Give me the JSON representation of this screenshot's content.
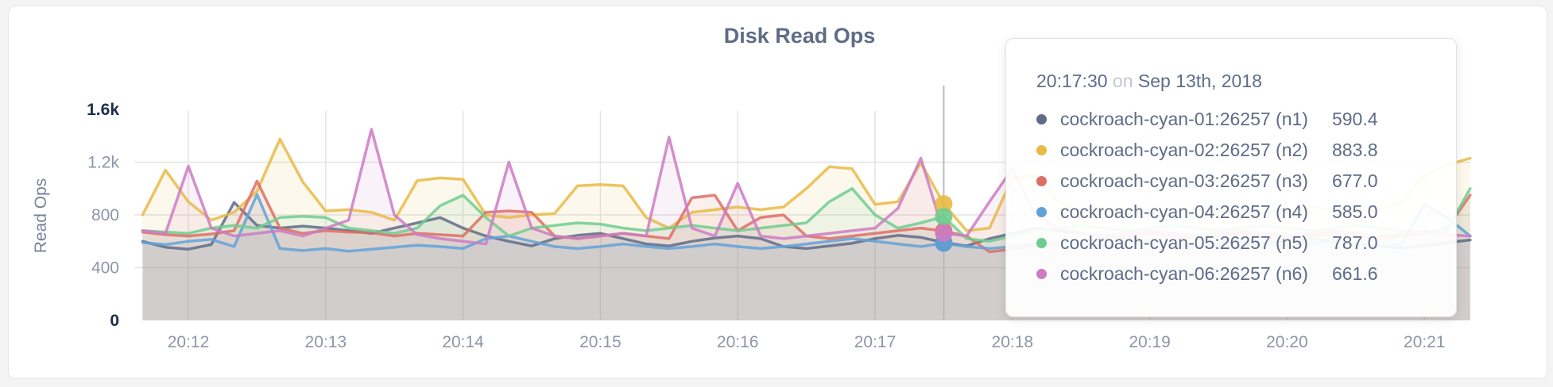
{
  "page": {
    "background": "#F4F4F5",
    "card_background": "#FFFFFF",
    "card_border": "#E6E6E6"
  },
  "chart": {
    "title": "Disk Read Ops",
    "title_color": "#5F6C87",
    "grid_color": "#E4E4E4",
    "hover_line_color": "#BBBBBB",
    "axis_text_color": "#8D96A8",
    "axis_text_strong_color": "#1F2C4D",
    "y_axis": {
      "label": "Read Ops",
      "ticks": [
        {
          "label": "0",
          "value": 0,
          "strong": true,
          "gridline": false
        },
        {
          "label": "400",
          "value": 400,
          "strong": false,
          "gridline": true
        },
        {
          "label": "800",
          "value": 800,
          "strong": false,
          "gridline": true
        },
        {
          "label": "1.2k",
          "value": 1200,
          "strong": false,
          "gridline": true
        },
        {
          "label": "1.6k",
          "value": 1600,
          "strong": true,
          "gridline": false
        }
      ]
    },
    "x_axis": {
      "tick_labels": [
        "20:12",
        "20:13",
        "20:14",
        "20:15",
        "20:16",
        "20:17",
        "20:18",
        "20:19",
        "20:20",
        "20:21"
      ]
    }
  },
  "chart_data": {
    "type": "line",
    "area": true,
    "grid": true,
    "title": "Disk Read Ops",
    "xlabel": "",
    "ylabel": "Read Ops",
    "ylim": [
      0,
      1600
    ],
    "x_start": "20:11:40",
    "x_interval_seconds": 10,
    "x_tick_labels": [
      "20:12",
      "20:13",
      "20:14",
      "20:15",
      "20:16",
      "20:17",
      "20:18",
      "20:19",
      "20:20",
      "20:21"
    ],
    "x_tick_indices": [
      2,
      8,
      14,
      20,
      26,
      32,
      38,
      44,
      50,
      56
    ],
    "hover_index": 35,
    "hover_time": "20:17:30",
    "series": [
      {
        "name": "cockroach-cyan-01:26257 (n1)",
        "node": "n1",
        "color": "#5F6C87",
        "values": [
          600,
          555,
          540,
          575,
          895,
          720,
          700,
          715,
          700,
          680,
          660,
          700,
          740,
          780,
          700,
          640,
          600,
          565,
          620,
          645,
          660,
          620,
          580,
          565,
          600,
          625,
          640,
          620,
          560,
          545,
          565,
          585,
          620,
          645,
          630,
          590.4,
          565,
          620,
          660,
          700,
          680,
          660,
          640,
          620,
          600,
          580,
          565,
          550,
          565,
          585,
          605,
          620,
          600,
          580,
          565,
          550,
          565,
          590,
          610
        ]
      },
      {
        "name": "cockroach-cyan-02:26257 (n2)",
        "node": "n2",
        "color": "#E9BA45",
        "values": [
          800,
          1140,
          900,
          760,
          820,
          980,
          1375,
          1050,
          830,
          840,
          820,
          760,
          1060,
          1080,
          1070,
          800,
          780,
          800,
          810,
          1020,
          1030,
          1020,
          780,
          700,
          820,
          840,
          860,
          840,
          860,
          1000,
          1165,
          1150,
          880,
          900,
          1195,
          883.8,
          680,
          700,
          1080,
          1100,
          900,
          820,
          840,
          820,
          800,
          820,
          840,
          820,
          800,
          820,
          840,
          860,
          840,
          820,
          840,
          900,
          1100,
          1180,
          1230
        ]
      },
      {
        "name": "cockroach-cyan-03:26257 (n3)",
        "node": "n3",
        "color": "#DE6E64",
        "values": [
          670,
          650,
          640,
          655,
          680,
          1057,
          700,
          660,
          680,
          670,
          665,
          640,
          660,
          650,
          640,
          820,
          830,
          820,
          640,
          620,
          640,
          660,
          640,
          620,
          930,
          950,
          680,
          780,
          800,
          640,
          620,
          640,
          660,
          680,
          700,
          677,
          640,
          520,
          540,
          560,
          580,
          600,
          620,
          640,
          660,
          640,
          620,
          640,
          660,
          640,
          620,
          640,
          660,
          640,
          620,
          640,
          660,
          700,
          950
        ]
      },
      {
        "name": "cockroach-cyan-04:26257 (n4)",
        "node": "n4",
        "color": "#62A2D9",
        "values": [
          590,
          575,
          600,
          615,
          560,
          955,
          545,
          530,
          545,
          525,
          540,
          555,
          570,
          560,
          545,
          620,
          640,
          600,
          560,
          545,
          560,
          580,
          560,
          545,
          560,
          580,
          560,
          545,
          560,
          580,
          600,
          620,
          600,
          580,
          560,
          585,
          560,
          545,
          560,
          580,
          600,
          580,
          560,
          580,
          600,
          580,
          560,
          580,
          600,
          580,
          560,
          580,
          600,
          580,
          560,
          580,
          880,
          780,
          640
        ]
      },
      {
        "name": "cockroach-cyan-05:26257 (n5)",
        "node": "n5",
        "color": "#6FCC90",
        "values": [
          680,
          670,
          660,
          700,
          720,
          700,
          780,
          790,
          780,
          700,
          680,
          660,
          700,
          870,
          950,
          780,
          640,
          700,
          720,
          740,
          730,
          700,
          680,
          700,
          720,
          700,
          680,
          700,
          720,
          740,
          900,
          1000,
          800,
          700,
          740,
          787,
          620,
          600,
          640,
          680,
          700,
          720,
          700,
          680,
          700,
          720,
          700,
          680,
          700,
          720,
          700,
          680,
          700,
          720,
          700,
          680,
          660,
          690,
          1000
        ]
      },
      {
        "name": "cockroach-cyan-06:26257 (n6)",
        "node": "n6",
        "color": "#CC7BC4",
        "values": [
          680,
          660,
          1170,
          700,
          640,
          660,
          680,
          640,
          700,
          760,
          1450,
          800,
          650,
          620,
          600,
          580,
          1200,
          700,
          640,
          620,
          640,
          660,
          640,
          1390,
          700,
          640,
          1040,
          640,
          620,
          640,
          660,
          680,
          700,
          850,
          1230,
          661.6,
          640,
          900,
          1150,
          800,
          700,
          660,
          640,
          660,
          680,
          660,
          640,
          660,
          680,
          660,
          640,
          660,
          680,
          660,
          640,
          660,
          680,
          650,
          640
        ]
      }
    ]
  },
  "tooltip": {
    "time": "20:17:30",
    "conjunction": "on",
    "date": "Sep 13th, 2018",
    "rows": [
      {
        "label": "cockroach-cyan-01:26257 (n1)",
        "value": "590.4",
        "color": "#5F6C87"
      },
      {
        "label": "cockroach-cyan-02:26257 (n2)",
        "value": "883.8",
        "color": "#E9BA45"
      },
      {
        "label": "cockroach-cyan-03:26257 (n3)",
        "value": "677.0",
        "color": "#DE6E64"
      },
      {
        "label": "cockroach-cyan-04:26257 (n4)",
        "value": "585.0",
        "color": "#62A2D9"
      },
      {
        "label": "cockroach-cyan-05:26257 (n5)",
        "value": "787.0",
        "color": "#6FCC90"
      },
      {
        "label": "cockroach-cyan-06:26257 (n6)",
        "value": "661.6",
        "color": "#CC7BC4"
      }
    ]
  }
}
